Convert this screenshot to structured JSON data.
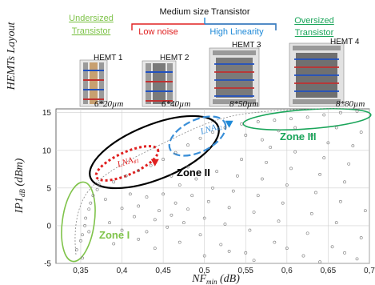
{
  "layout_panel": {
    "ylabel": "HEMTs Layout",
    "header": {
      "undersized": [
        "Undersized",
        "Transistor"
      ],
      "medium": "Medium size Transistor",
      "low_noise": "Low noise",
      "high_linearity": "High Linearity",
      "oversized": [
        "Oversized",
        "Transistor"
      ]
    },
    "hemts": [
      {
        "name": "HEMT 1",
        "size": "6*20µm"
      },
      {
        "name": "HEMT 2",
        "size": "6*40µm"
      },
      {
        "name": "HEMT 3",
        "size": "8*50µm"
      },
      {
        "name": "HEMT 4",
        "size": "8*80µm"
      }
    ]
  },
  "colors": {
    "undersized": "#7fc34a",
    "low_noise": "#e02020",
    "high_linearity": "#1f8ad8",
    "oversized": "#1aa55a",
    "zone2": "#000000",
    "lna1": "#e02020",
    "lna2": "#3a8fd8"
  },
  "chart_data": {
    "type": "scatter",
    "xlabel": "NF_min (dB)",
    "ylabel": "IP1_dB (dBm)",
    "xlim": [
      0.32,
      0.7
    ],
    "ylim": [
      -5,
      15.5
    ],
    "xticks": [
      "0,35",
      "0,4",
      "0,45",
      "0,5",
      "0,55",
      "0,6",
      "0,65",
      "0,7"
    ],
    "xtick_values": [
      0.35,
      0.4,
      0.45,
      0.5,
      0.55,
      0.6,
      0.65,
      0.7
    ],
    "yticks": [
      "-5",
      "0",
      "5",
      "10",
      "15"
    ],
    "ytick_values": [
      -5,
      0,
      5,
      10,
      15
    ],
    "zones": [
      {
        "label": "Zone I",
        "color": "#7fc34a"
      },
      {
        "label": "Zone II",
        "color": "#000000"
      },
      {
        "label": "Zone III",
        "color": "#1aa55a"
      }
    ],
    "lna_markers": [
      {
        "label": "LNA#1",
        "x": 0.44,
        "y": 8.2,
        "color": "#e02020"
      },
      {
        "label": "LNA#2",
        "x": 0.53,
        "y": 13.3,
        "color": "#1f8ad8"
      }
    ],
    "series": [
      {
        "values": [
          {
            "x": 0.345,
            "y": -3.2
          },
          {
            "x": 0.35,
            "y": -2.0
          },
          {
            "x": 0.352,
            "y": -1.2
          },
          {
            "x": 0.355,
            "y": 0.0
          },
          {
            "x": 0.356,
            "y": 1.0
          },
          {
            "x": 0.36,
            "y": 2.2
          },
          {
            "x": 0.362,
            "y": 3.0
          },
          {
            "x": 0.365,
            "y": 4.0
          },
          {
            "x": 0.37,
            "y": 4.8
          },
          {
            "x": 0.372,
            "y": 5.5
          },
          {
            "x": 0.352,
            "y": -4.3
          },
          {
            "x": 0.36,
            "y": -0.8
          },
          {
            "x": 0.39,
            "y": 5.8
          },
          {
            "x": 0.405,
            "y": 6.6
          },
          {
            "x": 0.42,
            "y": 7.3
          },
          {
            "x": 0.435,
            "y": 8.0
          },
          {
            "x": 0.45,
            "y": 8.8
          },
          {
            "x": 0.465,
            "y": 9.7
          },
          {
            "x": 0.48,
            "y": 10.7
          },
          {
            "x": 0.495,
            "y": 11.6
          },
          {
            "x": 0.51,
            "y": 12.4
          },
          {
            "x": 0.525,
            "y": 13.0
          },
          {
            "x": 0.545,
            "y": 13.5
          },
          {
            "x": 0.565,
            "y": 13.8
          },
          {
            "x": 0.585,
            "y": 14.0
          },
          {
            "x": 0.605,
            "y": 14.2
          },
          {
            "x": 0.625,
            "y": 14.4
          },
          {
            "x": 0.645,
            "y": 14.7
          },
          {
            "x": 0.665,
            "y": 15.0
          },
          {
            "x": 0.685,
            "y": 15.2
          },
          {
            "x": 0.38,
            "y": 3.5
          },
          {
            "x": 0.4,
            "y": 2.3
          },
          {
            "x": 0.41,
            "y": 4.2
          },
          {
            "x": 0.415,
            "y": 1.2
          },
          {
            "x": 0.42,
            "y": 2.6
          },
          {
            "x": 0.43,
            "y": 3.8
          },
          {
            "x": 0.44,
            "y": 0.8
          },
          {
            "x": 0.445,
            "y": 2.0
          },
          {
            "x": 0.45,
            "y": 4.2
          },
          {
            "x": 0.455,
            "y": -0.2
          },
          {
            "x": 0.46,
            "y": 1.4
          },
          {
            "x": 0.465,
            "y": 3.0
          },
          {
            "x": 0.47,
            "y": 5.4
          },
          {
            "x": 0.475,
            "y": 0.4
          },
          {
            "x": 0.48,
            "y": 2.2
          },
          {
            "x": 0.485,
            "y": 4.0
          },
          {
            "x": 0.49,
            "y": 6.2
          },
          {
            "x": 0.495,
            "y": -1.2
          },
          {
            "x": 0.5,
            "y": 1.0
          },
          {
            "x": 0.505,
            "y": 3.2
          },
          {
            "x": 0.51,
            "y": 5.0
          },
          {
            "x": 0.515,
            "y": 7.2
          },
          {
            "x": 0.52,
            "y": -2.5
          },
          {
            "x": 0.525,
            "y": 0.2
          },
          {
            "x": 0.53,
            "y": 2.4
          },
          {
            "x": 0.535,
            "y": 4.6
          },
          {
            "x": 0.54,
            "y": 6.6
          },
          {
            "x": 0.545,
            "y": 8.8
          },
          {
            "x": 0.55,
            "y": -3.6
          },
          {
            "x": 0.555,
            "y": -0.6
          },
          {
            "x": 0.56,
            "y": 1.8
          },
          {
            "x": 0.565,
            "y": 4.0
          },
          {
            "x": 0.57,
            "y": 6.2
          },
          {
            "x": 0.575,
            "y": 8.4
          },
          {
            "x": 0.58,
            "y": 10.4
          },
          {
            "x": 0.585,
            "y": -2.2
          },
          {
            "x": 0.59,
            "y": 0.6
          },
          {
            "x": 0.595,
            "y": 3.0
          },
          {
            "x": 0.6,
            "y": 5.4
          },
          {
            "x": 0.605,
            "y": 7.6
          },
          {
            "x": 0.61,
            "y": 9.8
          },
          {
            "x": 0.615,
            "y": 11.6
          },
          {
            "x": 0.62,
            "y": -4.0
          },
          {
            "x": 0.625,
            "y": -1.0
          },
          {
            "x": 0.63,
            "y": 1.6
          },
          {
            "x": 0.635,
            "y": 4.4
          },
          {
            "x": 0.64,
            "y": 6.8
          },
          {
            "x": 0.645,
            "y": 9.0
          },
          {
            "x": 0.65,
            "y": 11.0
          },
          {
            "x": 0.655,
            "y": -2.8
          },
          {
            "x": 0.66,
            "y": 0.4
          },
          {
            "x": 0.665,
            "y": 3.2
          },
          {
            "x": 0.67,
            "y": 5.8
          },
          {
            "x": 0.675,
            "y": 8.2
          },
          {
            "x": 0.68,
            "y": 10.6
          },
          {
            "x": 0.685,
            "y": -4.4
          },
          {
            "x": 0.69,
            "y": -1.6
          },
          {
            "x": 0.695,
            "y": 2.0
          },
          {
            "x": 0.59,
            "y": 12.6
          },
          {
            "x": 0.63,
            "y": 12.0
          },
          {
            "x": 0.55,
            "y": 12.0
          },
          {
            "x": 0.57,
            "y": 11.4
          },
          {
            "x": 0.61,
            "y": 13.0
          },
          {
            "x": 0.66,
            "y": 13.0
          },
          {
            "x": 0.69,
            "y": 12.4
          },
          {
            "x": 0.4,
            "y": -0.6
          },
          {
            "x": 0.42,
            "y": -1.8
          },
          {
            "x": 0.44,
            "y": -3.0
          },
          {
            "x": 0.47,
            "y": -2.2
          },
          {
            "x": 0.5,
            "y": -4.0
          },
          {
            "x": 0.53,
            "y": -3.4
          },
          {
            "x": 0.56,
            "y": -4.6
          },
          {
            "x": 0.6,
            "y": -3.0
          },
          {
            "x": 0.64,
            "y": -4.8
          },
          {
            "x": 0.67,
            "y": -3.6
          },
          {
            "x": 0.385,
            "y": 0.4
          },
          {
            "x": 0.39,
            "y": -2.4
          },
          {
            "x": 0.43,
            "y": -0.8
          },
          {
            "x": 0.46,
            "y": 6.6
          },
          {
            "x": 0.48,
            "y": 7.8
          }
        ]
      }
    ]
  }
}
